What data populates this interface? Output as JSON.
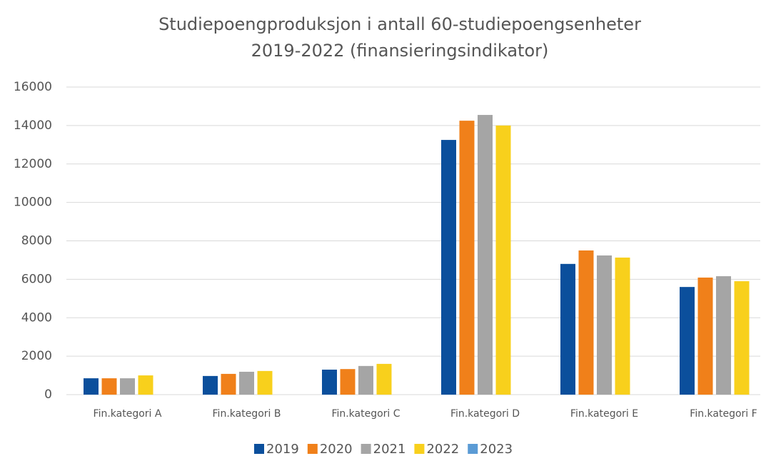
{
  "chart_data": {
    "type": "bar",
    "title": [
      "Studiepoengproduksjon i antall 60-studiepoengsenheter",
      "2019-2022 (finansieringsindikator)"
    ],
    "categories": [
      "Fin.kategori A",
      "Fin.kategori B",
      "Fin.kategori C",
      "Fin.kategori D",
      "Fin.kategori E",
      "Fin.kategori F"
    ],
    "series": [
      {
        "name": "2019",
        "color": "#0b4f9c",
        "values": [
          850,
          970,
          1300,
          13250,
          6800,
          5600
        ]
      },
      {
        "name": "2020",
        "color": "#f0801a",
        "values": [
          850,
          1080,
          1330,
          14250,
          7500,
          6090
        ]
      },
      {
        "name": "2021",
        "color": "#a5a5a5",
        "values": [
          850,
          1190,
          1490,
          14550,
          7240,
          6160
        ]
      },
      {
        "name": "2022",
        "color": "#f8d01c",
        "values": [
          1000,
          1230,
          1600,
          14000,
          7130,
          5900
        ]
      },
      {
        "name": "2023",
        "color": "#5b9bd5",
        "values": [
          null,
          null,
          null,
          null,
          null,
          null
        ]
      }
    ],
    "ylim": [
      0,
      16000
    ],
    "yticks": [
      0,
      2000,
      4000,
      6000,
      8000,
      10000,
      12000,
      14000,
      16000
    ],
    "grid": true,
    "legend": "bottom"
  }
}
